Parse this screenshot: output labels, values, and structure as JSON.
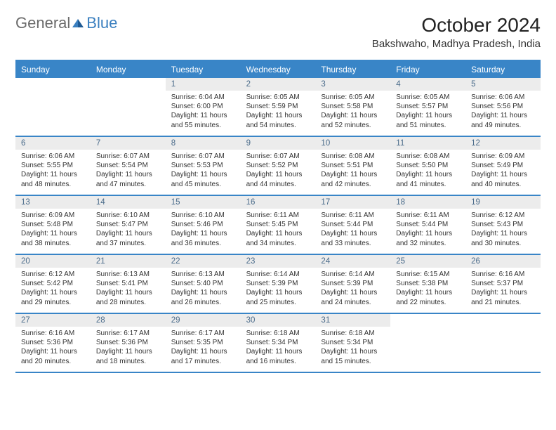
{
  "logo": {
    "general": "General",
    "blue": "Blue"
  },
  "title": "October 2024",
  "location": "Bakshwaho, Madhya Pradesh, India",
  "colors": {
    "header_bar": "#3985c7",
    "daynum_bg": "#ececec",
    "daynum_fg": "#4a6b8a",
    "text": "#333333",
    "logo_general": "#6b6b6b",
    "logo_blue": "#3a7fbf",
    "background": "#ffffff"
  },
  "weekdays": [
    "Sunday",
    "Monday",
    "Tuesday",
    "Wednesday",
    "Thursday",
    "Friday",
    "Saturday"
  ],
  "weeks": [
    [
      {
        "empty": true
      },
      {
        "empty": true
      },
      {
        "num": "1",
        "sunrise": "Sunrise: 6:04 AM",
        "sunset": "Sunset: 6:00 PM",
        "daylight": "Daylight: 11 hours and 55 minutes."
      },
      {
        "num": "2",
        "sunrise": "Sunrise: 6:05 AM",
        "sunset": "Sunset: 5:59 PM",
        "daylight": "Daylight: 11 hours and 54 minutes."
      },
      {
        "num": "3",
        "sunrise": "Sunrise: 6:05 AM",
        "sunset": "Sunset: 5:58 PM",
        "daylight": "Daylight: 11 hours and 52 minutes."
      },
      {
        "num": "4",
        "sunrise": "Sunrise: 6:05 AM",
        "sunset": "Sunset: 5:57 PM",
        "daylight": "Daylight: 11 hours and 51 minutes."
      },
      {
        "num": "5",
        "sunrise": "Sunrise: 6:06 AM",
        "sunset": "Sunset: 5:56 PM",
        "daylight": "Daylight: 11 hours and 49 minutes."
      }
    ],
    [
      {
        "num": "6",
        "sunrise": "Sunrise: 6:06 AM",
        "sunset": "Sunset: 5:55 PM",
        "daylight": "Daylight: 11 hours and 48 minutes."
      },
      {
        "num": "7",
        "sunrise": "Sunrise: 6:07 AM",
        "sunset": "Sunset: 5:54 PM",
        "daylight": "Daylight: 11 hours and 47 minutes."
      },
      {
        "num": "8",
        "sunrise": "Sunrise: 6:07 AM",
        "sunset": "Sunset: 5:53 PM",
        "daylight": "Daylight: 11 hours and 45 minutes."
      },
      {
        "num": "9",
        "sunrise": "Sunrise: 6:07 AM",
        "sunset": "Sunset: 5:52 PM",
        "daylight": "Daylight: 11 hours and 44 minutes."
      },
      {
        "num": "10",
        "sunrise": "Sunrise: 6:08 AM",
        "sunset": "Sunset: 5:51 PM",
        "daylight": "Daylight: 11 hours and 42 minutes."
      },
      {
        "num": "11",
        "sunrise": "Sunrise: 6:08 AM",
        "sunset": "Sunset: 5:50 PM",
        "daylight": "Daylight: 11 hours and 41 minutes."
      },
      {
        "num": "12",
        "sunrise": "Sunrise: 6:09 AM",
        "sunset": "Sunset: 5:49 PM",
        "daylight": "Daylight: 11 hours and 40 minutes."
      }
    ],
    [
      {
        "num": "13",
        "sunrise": "Sunrise: 6:09 AM",
        "sunset": "Sunset: 5:48 PM",
        "daylight": "Daylight: 11 hours and 38 minutes."
      },
      {
        "num": "14",
        "sunrise": "Sunrise: 6:10 AM",
        "sunset": "Sunset: 5:47 PM",
        "daylight": "Daylight: 11 hours and 37 minutes."
      },
      {
        "num": "15",
        "sunrise": "Sunrise: 6:10 AM",
        "sunset": "Sunset: 5:46 PM",
        "daylight": "Daylight: 11 hours and 36 minutes."
      },
      {
        "num": "16",
        "sunrise": "Sunrise: 6:11 AM",
        "sunset": "Sunset: 5:45 PM",
        "daylight": "Daylight: 11 hours and 34 minutes."
      },
      {
        "num": "17",
        "sunrise": "Sunrise: 6:11 AM",
        "sunset": "Sunset: 5:44 PM",
        "daylight": "Daylight: 11 hours and 33 minutes."
      },
      {
        "num": "18",
        "sunrise": "Sunrise: 6:11 AM",
        "sunset": "Sunset: 5:44 PM",
        "daylight": "Daylight: 11 hours and 32 minutes."
      },
      {
        "num": "19",
        "sunrise": "Sunrise: 6:12 AM",
        "sunset": "Sunset: 5:43 PM",
        "daylight": "Daylight: 11 hours and 30 minutes."
      }
    ],
    [
      {
        "num": "20",
        "sunrise": "Sunrise: 6:12 AM",
        "sunset": "Sunset: 5:42 PM",
        "daylight": "Daylight: 11 hours and 29 minutes."
      },
      {
        "num": "21",
        "sunrise": "Sunrise: 6:13 AM",
        "sunset": "Sunset: 5:41 PM",
        "daylight": "Daylight: 11 hours and 28 minutes."
      },
      {
        "num": "22",
        "sunrise": "Sunrise: 6:13 AM",
        "sunset": "Sunset: 5:40 PM",
        "daylight": "Daylight: 11 hours and 26 minutes."
      },
      {
        "num": "23",
        "sunrise": "Sunrise: 6:14 AM",
        "sunset": "Sunset: 5:39 PM",
        "daylight": "Daylight: 11 hours and 25 minutes."
      },
      {
        "num": "24",
        "sunrise": "Sunrise: 6:14 AM",
        "sunset": "Sunset: 5:39 PM",
        "daylight": "Daylight: 11 hours and 24 minutes."
      },
      {
        "num": "25",
        "sunrise": "Sunrise: 6:15 AM",
        "sunset": "Sunset: 5:38 PM",
        "daylight": "Daylight: 11 hours and 22 minutes."
      },
      {
        "num": "26",
        "sunrise": "Sunrise: 6:16 AM",
        "sunset": "Sunset: 5:37 PM",
        "daylight": "Daylight: 11 hours and 21 minutes."
      }
    ],
    [
      {
        "num": "27",
        "sunrise": "Sunrise: 6:16 AM",
        "sunset": "Sunset: 5:36 PM",
        "daylight": "Daylight: 11 hours and 20 minutes."
      },
      {
        "num": "28",
        "sunrise": "Sunrise: 6:17 AM",
        "sunset": "Sunset: 5:36 PM",
        "daylight": "Daylight: 11 hours and 18 minutes."
      },
      {
        "num": "29",
        "sunrise": "Sunrise: 6:17 AM",
        "sunset": "Sunset: 5:35 PM",
        "daylight": "Daylight: 11 hours and 17 minutes."
      },
      {
        "num": "30",
        "sunrise": "Sunrise: 6:18 AM",
        "sunset": "Sunset: 5:34 PM",
        "daylight": "Daylight: 11 hours and 16 minutes."
      },
      {
        "num": "31",
        "sunrise": "Sunrise: 6:18 AM",
        "sunset": "Sunset: 5:34 PM",
        "daylight": "Daylight: 11 hours and 15 minutes."
      },
      {
        "empty": true
      },
      {
        "empty": true
      }
    ]
  ]
}
